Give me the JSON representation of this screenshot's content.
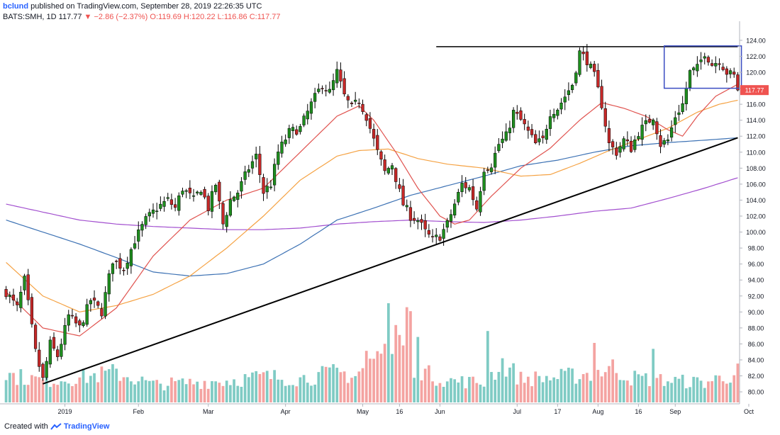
{
  "header": {
    "author": "bclund",
    "published_text": "published on TradingView.com, September 28, 2019 22:26:35 UTC",
    "symbol": "BATS:SMH, 1D",
    "last": "117.77",
    "arrow": "▼",
    "change": "−2.86 (−2.37%)",
    "open": "O:119.69",
    "high": "H:120.22",
    "low": "L:116.86",
    "close": "C:117.77"
  },
  "footer": {
    "prefix": "Created with",
    "brand": "TradingView"
  },
  "chart_data": {
    "type": "candlestick",
    "price_ylim": [
      78.5,
      125.5
    ],
    "y_ticks": [
      80,
      82,
      84,
      86,
      88,
      90,
      92,
      94,
      96,
      98,
      100,
      102,
      104,
      106,
      108,
      110,
      112,
      114,
      116,
      118,
      120,
      122,
      124
    ],
    "x_ticks": [
      {
        "label": "2019",
        "bar": 16
      },
      {
        "label": "Feb",
        "bar": 36
      },
      {
        "label": "Mar",
        "bar": 55
      },
      {
        "label": "Apr",
        "bar": 76
      },
      {
        "label": "May",
        "bar": 97
      },
      {
        "label": "16",
        "bar": 107
      },
      {
        "label": "Jun",
        "bar": 118
      },
      {
        "label": "Jul",
        "bar": 139
      },
      {
        "label": "17",
        "bar": 150
      },
      {
        "label": "Aug",
        "bar": 161
      },
      {
        "label": "16",
        "bar": 172
      },
      {
        "label": "Sep",
        "bar": 182
      },
      {
        "label": "Oct",
        "bar": 202
      }
    ],
    "last_price_label": "117.77",
    "colors": {
      "up": "#26a69a",
      "up_body": "#1e8e1e",
      "down": "#ef5350",
      "down_body": "#c62828",
      "ma20": "#e0534f",
      "ma50": "#f5a243",
      "ma100": "#3d72b4",
      "ma200": "#a24fcf"
    },
    "candle_anchors": [
      [
        0,
        92.5
      ],
      [
        3,
        90.5
      ],
      [
        5,
        94.0
      ],
      [
        8,
        85.0
      ],
      [
        10,
        81.5
      ],
      [
        12,
        86.0
      ],
      [
        14,
        84.5
      ],
      [
        17,
        89.5
      ],
      [
        20,
        88.0
      ],
      [
        23,
        91.5
      ],
      [
        26,
        90.0
      ],
      [
        29,
        96.5
      ],
      [
        32,
        95.5
      ],
      [
        35,
        99.0
      ],
      [
        38,
        101.5
      ],
      [
        41,
        103.0
      ],
      [
        44,
        104.0
      ],
      [
        46,
        103.0
      ],
      [
        48,
        105.5
      ],
      [
        51,
        104.0
      ],
      [
        53,
        105.5
      ],
      [
        55,
        103.0
      ],
      [
        57,
        106.0
      ],
      [
        59,
        101.0
      ],
      [
        61,
        104.0
      ],
      [
        63,
        105.0
      ],
      [
        66,
        108.0
      ],
      [
        68,
        109.5
      ],
      [
        70,
        105.0
      ],
      [
        72,
        106.0
      ],
      [
        74,
        110.0
      ],
      [
        77,
        112.5
      ],
      [
        80,
        113.0
      ],
      [
        83,
        116.0
      ],
      [
        86,
        118.5
      ],
      [
        88,
        117.5
      ],
      [
        90,
        120.0
      ],
      [
        92,
        117.0
      ],
      [
        94,
        115.5
      ],
      [
        96,
        116.5
      ],
      [
        98,
        114.5
      ],
      [
        99,
        113.0
      ],
      [
        101,
        110.0
      ],
      [
        103,
        107.5
      ],
      [
        105,
        108.5
      ],
      [
        107,
        105.0
      ],
      [
        108,
        103.5
      ],
      [
        110,
        102.0
      ],
      [
        112,
        101.5
      ],
      [
        114,
        100.0
      ],
      [
        116,
        99.0
      ],
      [
        118,
        99.5
      ],
      [
        120,
        101.0
      ],
      [
        122,
        103.5
      ],
      [
        124,
        106.0
      ],
      [
        126,
        105.5
      ],
      [
        128,
        103.0
      ],
      [
        130,
        108.0
      ],
      [
        132,
        108.5
      ],
      [
        134,
        111.0
      ],
      [
        136,
        112.0
      ],
      [
        138,
        115.0
      ],
      [
        140,
        114.0
      ],
      [
        142,
        112.5
      ],
      [
        144,
        111.0
      ],
      [
        146,
        111.5
      ],
      [
        148,
        115.0
      ],
      [
        150,
        115.5
      ],
      [
        152,
        117.0
      ],
      [
        154,
        118.5
      ],
      [
        156,
        122.5
      ],
      [
        158,
        121.5
      ],
      [
        160,
        119.5
      ],
      [
        162,
        116.0
      ],
      [
        164,
        111.0
      ],
      [
        166,
        110.0
      ],
      [
        168,
        111.5
      ],
      [
        170,
        110.5
      ],
      [
        172,
        112.5
      ],
      [
        174,
        113.5
      ],
      [
        176,
        114.5
      ],
      [
        178,
        111.0
      ],
      [
        180,
        111.5
      ],
      [
        182,
        114.5
      ],
      [
        184,
        116.0
      ],
      [
        186,
        120.0
      ],
      [
        188,
        120.5
      ],
      [
        190,
        122.5
      ],
      [
        192,
        121.0
      ],
      [
        194,
        121.5
      ],
      [
        196,
        120.0
      ],
      [
        198,
        119.5
      ],
      [
        199,
        117.8
      ]
    ],
    "volume_anchors": [
      [
        0,
        0.28
      ],
      [
        10,
        0.22
      ],
      [
        20,
        0.25
      ],
      [
        30,
        0.3
      ],
      [
        40,
        0.18
      ],
      [
        50,
        0.2
      ],
      [
        60,
        0.22
      ],
      [
        70,
        0.26
      ],
      [
        80,
        0.24
      ],
      [
        90,
        0.3
      ],
      [
        95,
        0.27
      ],
      [
        100,
        0.45
      ],
      [
        105,
        0.55
      ],
      [
        110,
        0.4
      ],
      [
        115,
        0.28
      ],
      [
        120,
        0.22
      ],
      [
        130,
        0.2
      ],
      [
        135,
        0.4
      ],
      [
        140,
        0.24
      ],
      [
        150,
        0.25
      ],
      [
        160,
        0.3
      ],
      [
        165,
        0.35
      ],
      [
        170,
        0.25
      ],
      [
        180,
        0.22
      ],
      [
        190,
        0.2
      ],
      [
        199,
        0.3
      ]
    ],
    "volume_spikes": [
      [
        104,
        1.0
      ],
      [
        106,
        0.78
      ],
      [
        107,
        0.68
      ],
      [
        109,
        0.96
      ],
      [
        110,
        0.92
      ],
      [
        112,
        0.66
      ],
      [
        131,
        0.72
      ],
      [
        160,
        0.6
      ],
      [
        176,
        0.54
      ],
      [
        98,
        0.52
      ],
      [
        100,
        0.44
      ]
    ],
    "ma_anchors": {
      "ma20": [
        [
          0,
          92.5
        ],
        [
          10,
          88.0
        ],
        [
          20,
          87.0
        ],
        [
          30,
          90.5
        ],
        [
          40,
          97.0
        ],
        [
          50,
          101.5
        ],
        [
          60,
          104.0
        ],
        [
          70,
          105.5
        ],
        [
          80,
          110.0
        ],
        [
          90,
          114.5
        ],
        [
          96,
          115.8
        ],
        [
          100,
          114.0
        ],
        [
          106,
          110.0
        ],
        [
          112,
          105.5
        ],
        [
          118,
          102.0
        ],
        [
          122,
          101.0
        ],
        [
          126,
          101.5
        ],
        [
          132,
          104.5
        ],
        [
          140,
          108.0
        ],
        [
          148,
          110.5
        ],
        [
          156,
          114.0
        ],
        [
          162,
          116.2
        ],
        [
          168,
          115.5
        ],
        [
          174,
          114.5
        ],
        [
          180,
          112.8
        ],
        [
          184,
          112.0
        ],
        [
          188,
          114.5
        ],
        [
          193,
          117.0
        ],
        [
          199,
          118.5
        ]
      ],
      "ma50": [
        [
          0,
          96.2
        ],
        [
          10,
          92.0
        ],
        [
          20,
          90.0
        ],
        [
          30,
          90.8
        ],
        [
          40,
          92.2
        ],
        [
          50,
          94.5
        ],
        [
          60,
          98.0
        ],
        [
          70,
          102.0
        ],
        [
          80,
          106.5
        ],
        [
          90,
          109.5
        ],
        [
          96,
          110.2
        ],
        [
          104,
          110.4
        ],
        [
          112,
          109.2
        ],
        [
          120,
          108.5
        ],
        [
          130,
          108.0
        ],
        [
          140,
          107.0
        ],
        [
          148,
          107.2
        ],
        [
          156,
          108.6
        ],
        [
          164,
          110.2
        ],
        [
          172,
          111.6
        ],
        [
          180,
          113.0
        ],
        [
          188,
          115.0
        ],
        [
          194,
          116.0
        ],
        [
          199,
          116.5
        ]
      ],
      "ma100": [
        [
          0,
          101.5
        ],
        [
          10,
          100.0
        ],
        [
          20,
          98.5
        ],
        [
          30,
          96.8
        ],
        [
          40,
          95.0
        ],
        [
          50,
          94.5
        ],
        [
          60,
          94.8
        ],
        [
          70,
          96.0
        ],
        [
          80,
          98.5
        ],
        [
          90,
          101.5
        ],
        [
          100,
          103.0
        ],
        [
          110,
          104.6
        ],
        [
          120,
          105.8
        ],
        [
          130,
          107.0
        ],
        [
          140,
          108.3
        ],
        [
          150,
          109.0
        ],
        [
          160,
          110.0
        ],
        [
          170,
          110.8
        ],
        [
          180,
          111.2
        ],
        [
          190,
          111.5
        ],
        [
          199,
          111.8
        ]
      ],
      "ma200": [
        [
          0,
          103.5
        ],
        [
          10,
          102.5
        ],
        [
          20,
          101.5
        ],
        [
          30,
          101.0
        ],
        [
          40,
          100.7
        ],
        [
          50,
          100.5
        ],
        [
          60,
          100.3
        ],
        [
          70,
          100.3
        ],
        [
          80,
          100.5
        ],
        [
          90,
          101.0
        ],
        [
          100,
          101.3
        ],
        [
          110,
          101.5
        ],
        [
          120,
          101.3
        ],
        [
          130,
          101.2
        ],
        [
          140,
          101.5
        ],
        [
          150,
          102.0
        ],
        [
          160,
          102.6
        ],
        [
          170,
          103.0
        ],
        [
          180,
          104.2
        ],
        [
          190,
          105.5
        ],
        [
          199,
          106.8
        ]
      ]
    },
    "trendline": {
      "from": [
        10,
        81.0
      ],
      "to": [
        199,
        111.8
      ]
    },
    "resistance": {
      "from": [
        117,
        123.2
      ],
      "to": [
        199,
        123.2
      ]
    },
    "box": {
      "from_bar": 180,
      "to_bar": 199,
      "top": 123.3,
      "bottom": 118.0
    }
  }
}
